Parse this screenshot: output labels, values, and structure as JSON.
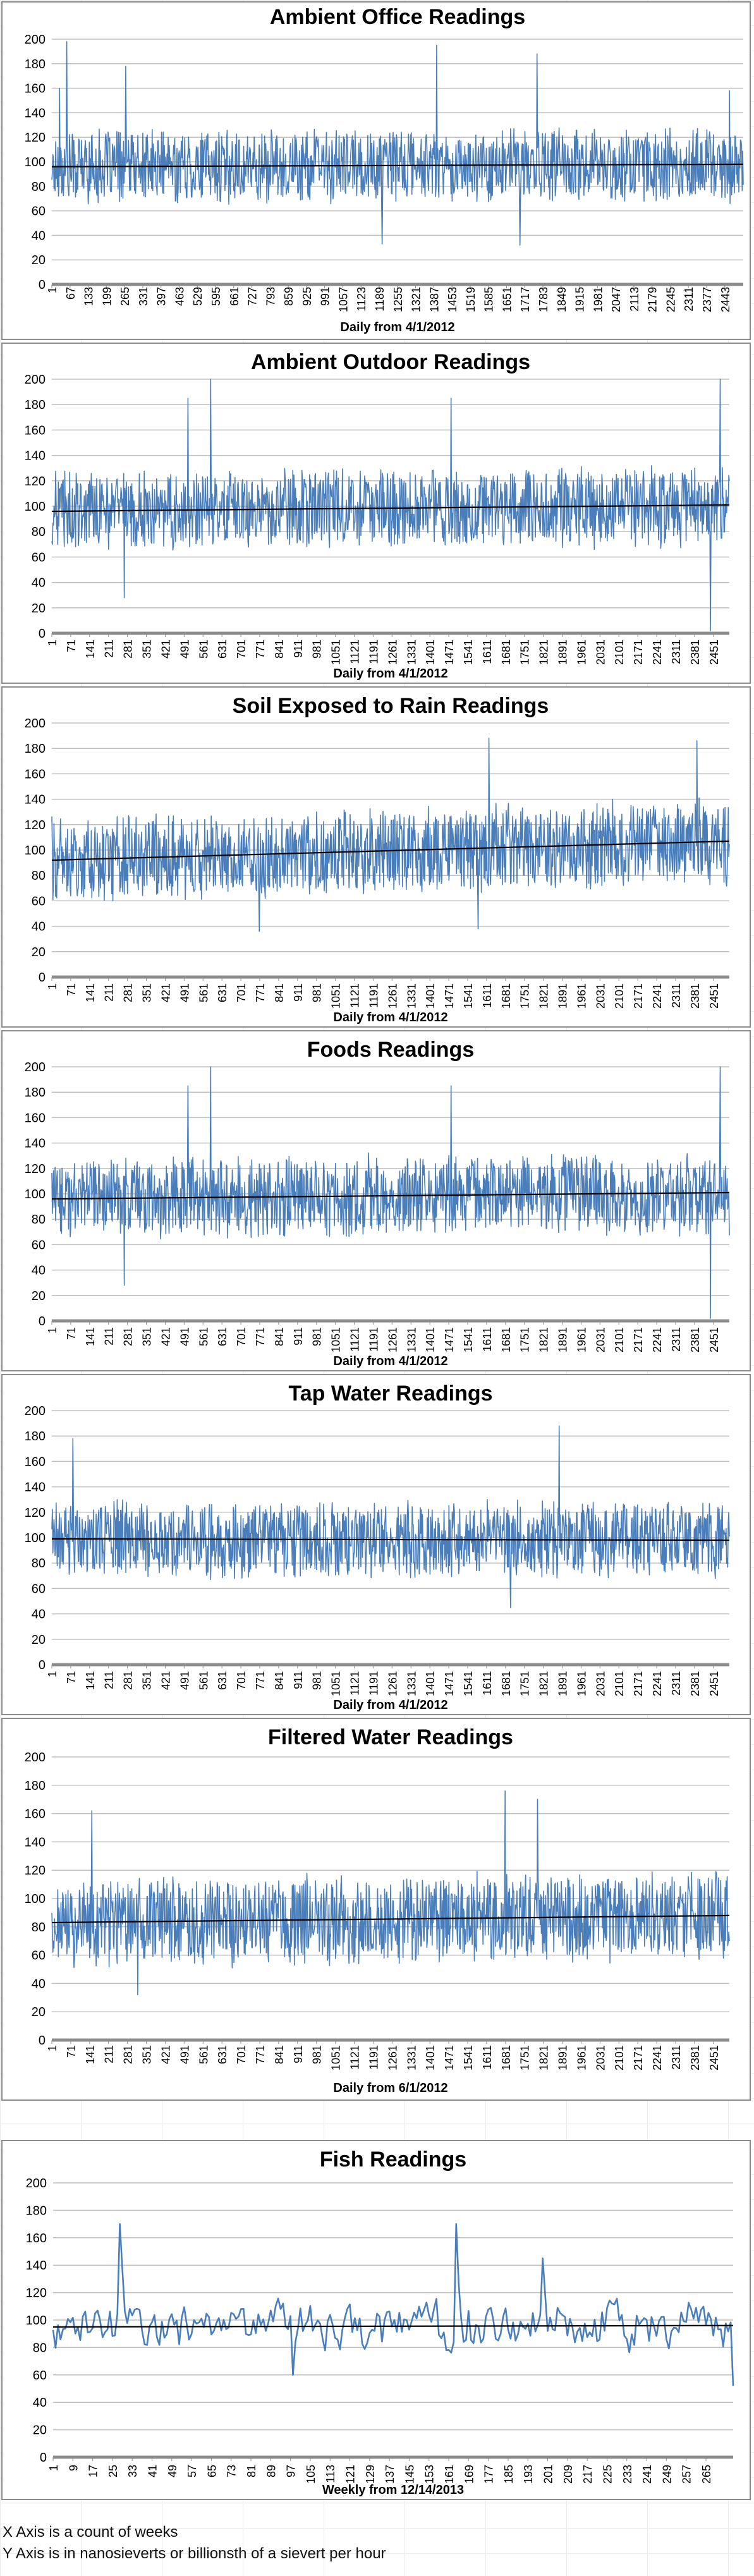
{
  "colors": {
    "series": "#4a7ebb",
    "trend": "#000000",
    "grid": "#bfbfbf"
  },
  "chart_data": [
    {
      "type": "line",
      "title": "Ambient Office Readings",
      "xlabel": "Daily from 4/1/2012",
      "ylabel": "",
      "ylim": [
        0,
        200
      ],
      "y_ticks": [
        0,
        20,
        40,
        60,
        80,
        100,
        120,
        140,
        160,
        180,
        200
      ],
      "x_range": [
        1,
        2510
      ],
      "x_ticks": [
        1,
        67,
        133,
        199,
        265,
        331,
        397,
        463,
        529,
        595,
        661,
        727,
        793,
        859,
        925,
        991,
        1057,
        1123,
        1189,
        1255,
        1321,
        1387,
        1453,
        1519,
        1585,
        1651,
        1717,
        1783,
        1849,
        1915,
        1981,
        2047,
        2113,
        2179,
        2245,
        2311,
        2377,
        2443
      ],
      "trend": [
        96,
        98
      ],
      "mean": 97,
      "spread": 17,
      "spikes": [
        [
          30,
          160
        ],
        [
          55,
          198
        ],
        [
          270,
          178
        ],
        [
          1398,
          195
        ],
        [
          1762,
          188
        ],
        [
          1700,
          32
        ],
        [
          1200,
          33
        ],
        [
          2460,
          158
        ]
      ],
      "grid": true
    },
    {
      "type": "line",
      "title": "Ambient Outdoor Readings",
      "xlabel": "Daily from 4/1/2012",
      "ylabel": "",
      "ylim": [
        0,
        200
      ],
      "y_ticks": [
        0,
        20,
        40,
        60,
        80,
        100,
        120,
        140,
        160,
        180,
        200
      ],
      "x_range": [
        1,
        2510
      ],
      "x_ticks": [
        1,
        71,
        141,
        211,
        281,
        351,
        421,
        491,
        561,
        631,
        701,
        771,
        841,
        911,
        981,
        1051,
        1121,
        1191,
        1261,
        1331,
        1401,
        1471,
        1541,
        1611,
        1681,
        1751,
        1821,
        1891,
        1961,
        2031,
        2101,
        2171,
        2241,
        2311,
        2381,
        2451
      ],
      "trend": [
        96,
        101
      ],
      "mean": 98,
      "spread": 18,
      "spikes": [
        [
          505,
          185
        ],
        [
          590,
          200
        ],
        [
          2475,
          200
        ],
        [
          2440,
          2
        ],
        [
          270,
          28
        ],
        [
          1480,
          185
        ]
      ],
      "grid": true
    },
    {
      "type": "line",
      "title": "Soil Exposed to Rain Readings",
      "xlabel": "Daily from 4/1/2012",
      "ylabel": "",
      "ylim": [
        0,
        200
      ],
      "y_ticks": [
        0,
        20,
        40,
        60,
        80,
        100,
        120,
        140,
        160,
        180,
        200
      ],
      "x_range": [
        1,
        2510
      ],
      "x_ticks": [
        1,
        71,
        141,
        211,
        281,
        351,
        421,
        491,
        561,
        631,
        701,
        771,
        841,
        911,
        981,
        1051,
        1121,
        1191,
        1261,
        1331,
        1401,
        1471,
        1541,
        1611,
        1681,
        1751,
        1821,
        1891,
        1961,
        2031,
        2101,
        2171,
        2241,
        2311,
        2381,
        2451
      ],
      "trend": [
        92,
        107
      ],
      "mean": 100,
      "spread": 19,
      "spikes": [
        [
          1620,
          188
        ],
        [
          2390,
          186
        ],
        [
          770,
          36
        ],
        [
          1580,
          38
        ]
      ],
      "grid": true
    },
    {
      "type": "line",
      "title": "Foods Readings",
      "xlabel": "Daily from 4/1/2012",
      "ylabel": "",
      "ylim": [
        0,
        200
      ],
      "y_ticks": [
        0,
        20,
        40,
        60,
        80,
        100,
        120,
        140,
        160,
        180,
        200
      ],
      "x_range": [
        1,
        2510
      ],
      "x_ticks": [
        1,
        71,
        141,
        211,
        281,
        351,
        421,
        491,
        561,
        631,
        701,
        771,
        841,
        911,
        981,
        1051,
        1121,
        1191,
        1261,
        1331,
        1401,
        1471,
        1541,
        1611,
        1681,
        1751,
        1821,
        1891,
        1961,
        2031,
        2101,
        2171,
        2241,
        2311,
        2381,
        2451
      ],
      "trend": [
        96,
        101
      ],
      "mean": 98,
      "spread": 18,
      "spikes": [
        [
          505,
          185
        ],
        [
          590,
          200
        ],
        [
          2475,
          200
        ],
        [
          2440,
          2
        ],
        [
          270,
          28
        ],
        [
          1480,
          185
        ]
      ],
      "grid": true
    },
    {
      "type": "line",
      "title": "Tap Water Readings",
      "xlabel": "Daily from 4/1/2012",
      "ylabel": "",
      "ylim": [
        0,
        200
      ],
      "y_ticks": [
        0,
        20,
        40,
        60,
        80,
        100,
        120,
        140,
        160,
        180,
        200
      ],
      "x_range": [
        1,
        2510
      ],
      "x_ticks": [
        1,
        71,
        141,
        211,
        281,
        351,
        421,
        491,
        561,
        631,
        701,
        771,
        841,
        911,
        981,
        1051,
        1121,
        1191,
        1261,
        1331,
        1401,
        1471,
        1541,
        1611,
        1681,
        1751,
        1821,
        1891,
        1961,
        2031,
        2101,
        2171,
        2241,
        2311,
        2381,
        2451
      ],
      "trend": [
        99,
        98
      ],
      "mean": 98,
      "spread": 17,
      "spikes": [
        [
          80,
          178
        ],
        [
          1880,
          188
        ],
        [
          1700,
          45
        ]
      ],
      "grid": true
    },
    {
      "type": "line",
      "title": "Filtered Water Readings",
      "xlabel": "Daily from 6/1/2012",
      "ylabel": "",
      "ylim": [
        0,
        200
      ],
      "y_ticks": [
        0,
        20,
        40,
        60,
        80,
        100,
        120,
        140,
        160,
        180,
        200
      ],
      "x_range": [
        1,
        2510
      ],
      "x_ticks": [
        1,
        71,
        141,
        211,
        281,
        351,
        421,
        491,
        561,
        631,
        701,
        771,
        841,
        911,
        981,
        1051,
        1121,
        1191,
        1261,
        1331,
        1401,
        1471,
        1541,
        1611,
        1681,
        1751,
        1821,
        1891,
        1961,
        2031,
        2101,
        2171,
        2241,
        2311,
        2381,
        2451
      ],
      "trend": [
        83,
        88
      ],
      "mean": 85,
      "spread": 18,
      "spikes": [
        [
          150,
          162
        ],
        [
          1680,
          176
        ],
        [
          1800,
          170
        ],
        [
          320,
          32
        ]
      ],
      "grid": true
    },
    {
      "type": "line",
      "title": "Fish Readings",
      "xlabel": "Weekly from 12/14/2013",
      "ylabel": "",
      "ylim": [
        0,
        200
      ],
      "y_ticks": [
        0,
        20,
        40,
        60,
        80,
        100,
        120,
        140,
        160,
        180,
        200
      ],
      "x_range": [
        1,
        276
      ],
      "x_ticks": [
        1,
        9,
        17,
        25,
        33,
        41,
        49,
        57,
        65,
        73,
        81,
        89,
        97,
        105,
        113,
        121,
        129,
        137,
        145,
        153,
        161,
        169,
        177,
        185,
        193,
        201,
        209,
        217,
        225,
        233,
        241,
        249,
        257,
        265
      ],
      "trend": [
        95,
        96
      ],
      "mean": 96,
      "spread": 16,
      "spikes": [
        [
          28,
          170
        ],
        [
          164,
          170
        ],
        [
          199,
          145
        ],
        [
          276,
          52
        ],
        [
          98,
          60
        ]
      ],
      "grid": true
    }
  ],
  "notes": {
    "x_axis": "X Axis is a count of weeks",
    "y_axis": "Y Axis is in nanosieverts or billionsth of a sievert per hour"
  }
}
